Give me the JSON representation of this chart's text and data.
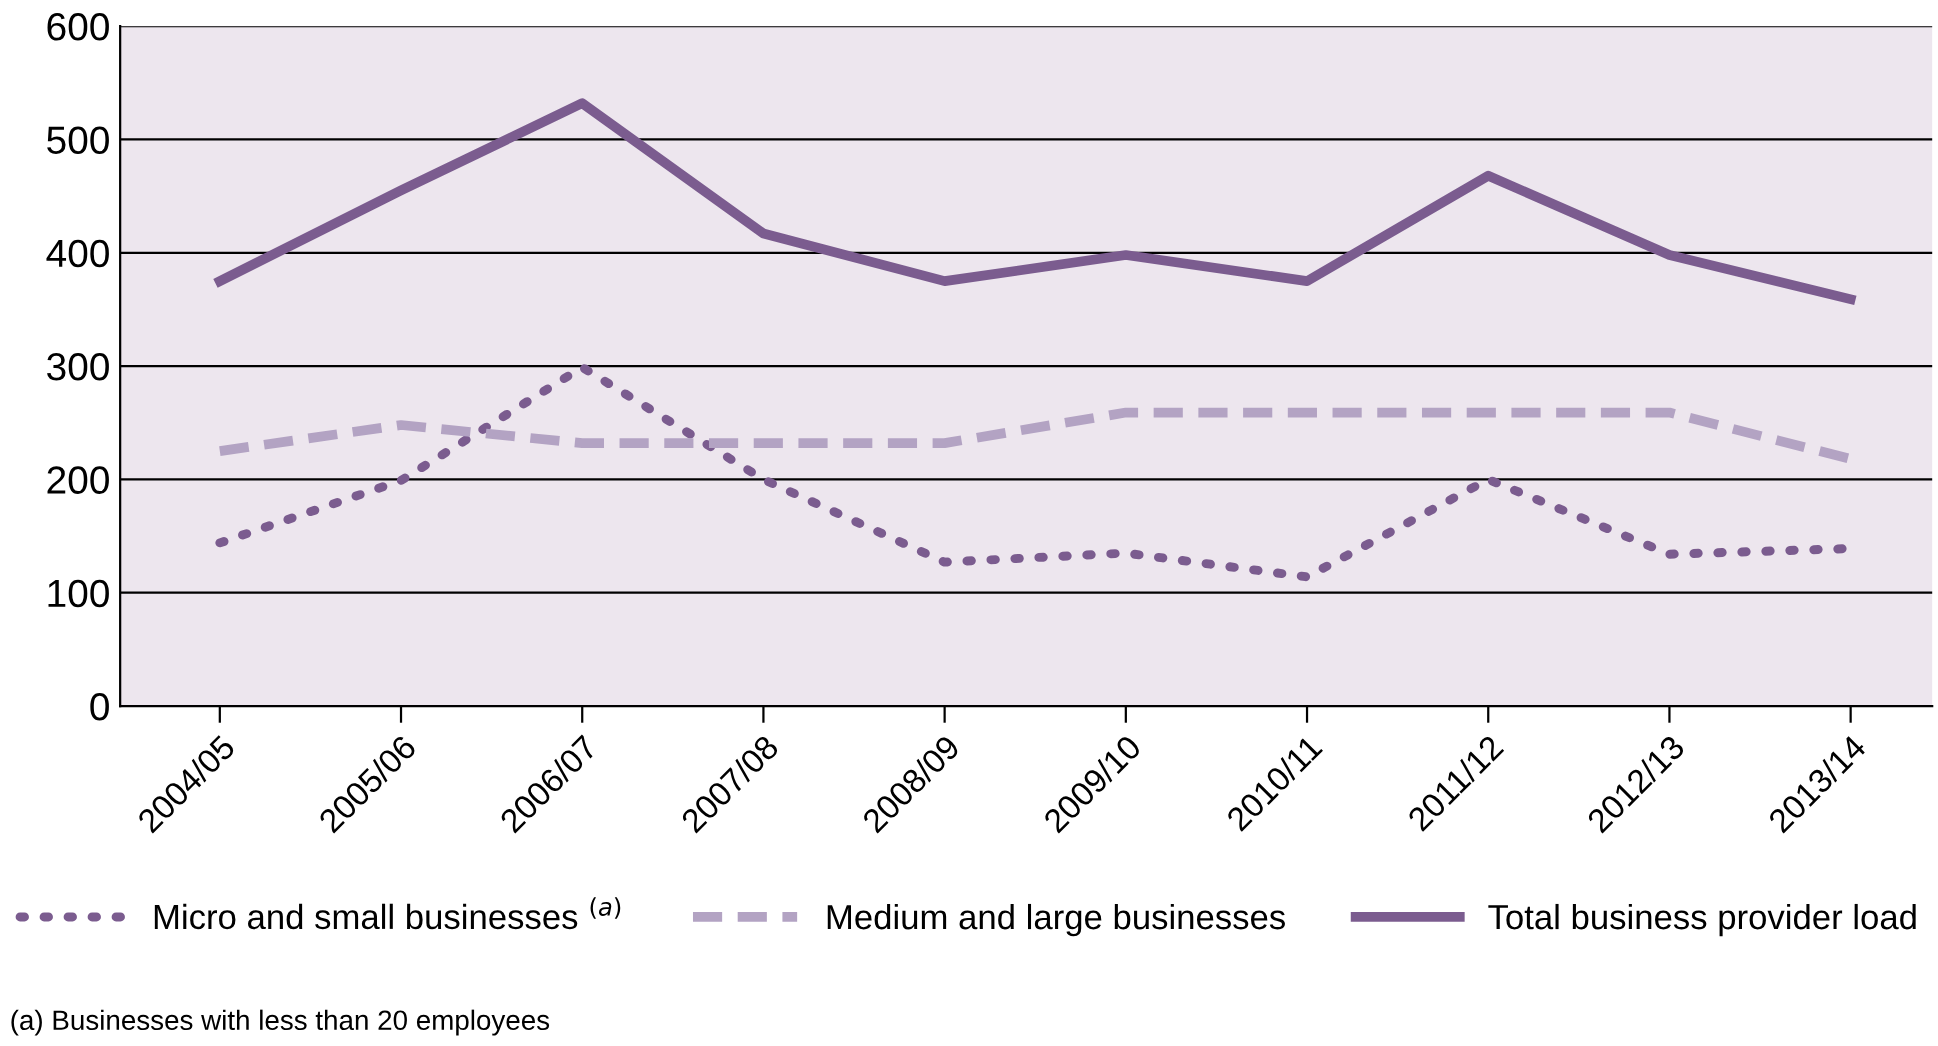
{
  "chart_data": {
    "type": "line",
    "categories": [
      "2004/05",
      "2005/06",
      "2006/07",
      "2007/08",
      "2008/09",
      "2009/10",
      "2010/11",
      "2011/12",
      "2012/13",
      "2013/14"
    ],
    "series": [
      {
        "name": "Micro and small businesses $^{(a)}$",
        "color": "#7b5c8f",
        "line_style": "dotted",
        "values": [
          144,
          199,
          299,
          200,
          127,
          135,
          114,
          200,
          134,
          139
        ]
      },
      {
        "name": "Medium and large businesses",
        "color": "#b3a3c3",
        "line_style": "dashed",
        "values": [
          225,
          248,
          232,
          232,
          232,
          259,
          259,
          259,
          259,
          218
        ]
      },
      {
        "name": "Total business provider load",
        "color": "#7b5c8f",
        "line_style": "solid",
        "values": [
          375,
          455,
          532,
          417,
          375,
          398,
          375,
          468,
          398,
          359
        ]
      }
    ],
    "ylim": [
      0,
      600
    ],
    "yticks": [
      0,
      100,
      200,
      300,
      400,
      500,
      600
    ],
    "grid": "y",
    "legend": "bottom",
    "marker": "none",
    "annotations": [
      "(a) Businesses with less than 20 employees"
    ]
  }
}
